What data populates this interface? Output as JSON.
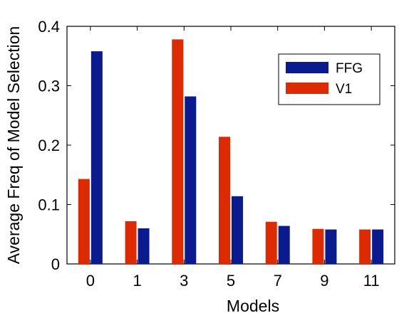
{
  "chart_data": {
    "type": "bar",
    "xlabel": "Models",
    "ylabel": "Average Freq of Model Selection",
    "categories": [
      "0",
      "1",
      "3",
      "5",
      "7",
      "9",
      "11"
    ],
    "ylim": [
      0,
      0.4
    ],
    "yticks": [
      "0",
      "0.1",
      "0.2",
      "0.3",
      "0.4"
    ],
    "grid": false,
    "legend_position": "top-right",
    "series": [
      {
        "name": "V1",
        "color": "#dd2a00",
        "values": [
          0.143,
          0.072,
          0.378,
          0.214,
          0.071,
          0.059,
          0.058
        ]
      },
      {
        "name": "FFG",
        "color": "#0a1a8f",
        "values": [
          0.358,
          0.06,
          0.282,
          0.114,
          0.064,
          0.058,
          0.058
        ]
      }
    ],
    "legend_order": [
      "FFG",
      "V1"
    ]
  }
}
